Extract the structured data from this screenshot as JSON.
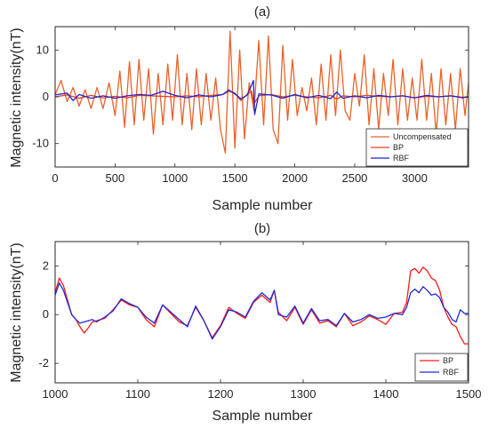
{
  "figure": {
    "charts": [
      {
        "type": "line",
        "title": "(a)",
        "xlabel": "Sample number",
        "ylabel": "Magnetic intensity(nT)",
        "xlim": [
          0,
          3450
        ],
        "ylim": [
          -15,
          15
        ],
        "xticks": [
          0,
          500,
          1000,
          1500,
          2000,
          2500,
          3000
        ],
        "yticks": [
          -10,
          0,
          10
        ],
        "grid": false,
        "legend_position": "bottom-right",
        "series": [
          {
            "name": "Uncompensated",
            "color": "#e8632a"
          },
          {
            "name": "BP",
            "color": "#e0401f"
          },
          {
            "name": "RBF",
            "color": "#1f24d4"
          }
        ]
      },
      {
        "type": "line",
        "title": "(b)",
        "xlabel": "Sample number",
        "ylabel": "Magnetic intensity(nT)",
        "xlim": [
          1000,
          1500
        ],
        "ylim": [
          -2.8,
          3
        ],
        "xticks": [
          1000,
          1100,
          1200,
          1300,
          1400,
          1500
        ],
        "yticks": [
          -2,
          0,
          2
        ],
        "grid": false,
        "legend_position": "bottom-right",
        "series": [
          {
            "name": "BP",
            "color": "#ff1a1a"
          },
          {
            "name": "RBF",
            "color": "#1f2bd6"
          }
        ]
      }
    ]
  },
  "chart_data": [
    {
      "type": "line",
      "title": "(a)",
      "xlabel": "Sample number",
      "ylabel": "Magnetic intensity(nT)",
      "xlim": [
        0,
        3450
      ],
      "ylim": [
        -15,
        15
      ],
      "series": [
        {
          "name": "Uncompensated",
          "x": [
            0,
            50,
            100,
            150,
            200,
            250,
            300,
            350,
            400,
            450,
            500,
            540,
            580,
            620,
            660,
            700,
            740,
            780,
            820,
            860,
            900,
            940,
            980,
            1020,
            1060,
            1100,
            1140,
            1180,
            1220,
            1260,
            1300,
            1340,
            1380,
            1420,
            1460,
            1500,
            1540,
            1580,
            1620,
            1660,
            1700,
            1740,
            1780,
            1820,
            1860,
            1900,
            1940,
            1980,
            2020,
            2060,
            2100,
            2140,
            2180,
            2220,
            2260,
            2300,
            2340,
            2380,
            2420,
            2460,
            2500,
            2540,
            2580,
            2620,
            2660,
            2700,
            2740,
            2780,
            2820,
            2860,
            2900,
            2940,
            2980,
            3020,
            3060,
            3100,
            3140,
            3180,
            3220,
            3260,
            3300,
            3340,
            3380,
            3420,
            3450
          ],
          "values": [
            0.5,
            3.5,
            -1,
            2,
            -2,
            1.5,
            -2.5,
            2,
            -2.5,
            3,
            -4,
            5.5,
            -6.5,
            7.5,
            -6,
            8,
            -5,
            6,
            -8,
            5,
            -6,
            7,
            -5,
            9,
            -6,
            5,
            -7,
            6,
            -6,
            5,
            -5,
            4,
            -7,
            -12,
            14,
            -11,
            10,
            -9,
            3,
            -3,
            12,
            -6,
            13,
            -7,
            -10,
            11,
            -5,
            8,
            -4,
            2,
            -3,
            4,
            -6,
            7,
            -5,
            9,
            -4,
            10,
            -3,
            -5,
            5,
            -2,
            9,
            -6,
            6,
            -7,
            5,
            -4,
            8,
            -6,
            6,
            -5,
            4,
            -5,
            8,
            -5,
            5,
            -8,
            6,
            -6,
            5,
            -7,
            6,
            -4,
            3
          ]
        },
        {
          "name": "BP",
          "x": [
            0,
            100,
            200,
            300,
            400,
            500,
            600,
            700,
            800,
            900,
            1000,
            1100,
            1200,
            1300,
            1400,
            1450,
            1500,
            1550,
            1600,
            1640,
            1660,
            1700,
            1800,
            1900,
            2000,
            2100,
            2200,
            2300,
            2350,
            2400,
            2500,
            2600,
            2700,
            2800,
            2900,
            3000,
            3100,
            3200,
            3300,
            3400,
            3450
          ],
          "values": [
            0,
            0.4,
            -0.3,
            0.3,
            -0.2,
            0.1,
            -0.2,
            0.3,
            0.2,
            0.1,
            0,
            0.2,
            0,
            0.3,
            0.5,
            1.2,
            0.8,
            -0.8,
            0.5,
            1.2,
            -1.5,
            0.2,
            0.5,
            0,
            0.3,
            0,
            -0.2,
            0.3,
            -0.5,
            0.2,
            0,
            0.3,
            0.1,
            0,
            0.2,
            -0.2,
            0.1,
            0,
            0.2,
            -0.1,
            0
          ]
        },
        {
          "name": "RBF",
          "x": [
            0,
            100,
            150,
            200,
            300,
            400,
            500,
            600,
            700,
            800,
            900,
            1000,
            1100,
            1200,
            1300,
            1400,
            1450,
            1500,
            1550,
            1600,
            1640,
            1655,
            1665,
            1700,
            1800,
            1900,
            2000,
            2100,
            2200,
            2300,
            2350,
            2400,
            2500,
            2600,
            2700,
            2800,
            2900,
            3000,
            3100,
            3200,
            3300,
            3400,
            3450
          ],
          "values": [
            0.4,
            0.8,
            -0.8,
            0.5,
            -0.3,
            0.2,
            -0.3,
            0.2,
            0.5,
            0.3,
            1.2,
            0.3,
            -0.2,
            0.4,
            0,
            0.5,
            1.5,
            0.6,
            -0.4,
            0.3,
            2.5,
            3.5,
            -3.8,
            0.6,
            0.4,
            -0.3,
            0.5,
            -0.2,
            0.3,
            -0.4,
            1,
            -0.3,
            0.2,
            -0.2,
            0.3,
            0,
            0.2,
            -0.2,
            0.3,
            0,
            0.2,
            -0.2,
            0
          ]
        }
      ]
    },
    {
      "type": "line",
      "title": "(b)",
      "xlabel": "Sample number",
      "ylabel": "Magnetic intensity(nT)",
      "xlim": [
        1000,
        1500
      ],
      "ylim": [
        -2.8,
        3
      ],
      "series": [
        {
          "name": "BP",
          "x": [
            1000,
            1005,
            1010,
            1015,
            1020,
            1025,
            1030,
            1035,
            1040,
            1045,
            1050,
            1060,
            1070,
            1080,
            1090,
            1100,
            1110,
            1120,
            1130,
            1140,
            1150,
            1160,
            1170,
            1180,
            1190,
            1200,
            1210,
            1220,
            1230,
            1240,
            1250,
            1260,
            1265,
            1270,
            1280,
            1290,
            1300,
            1310,
            1320,
            1330,
            1340,
            1350,
            1360,
            1370,
            1380,
            1390,
            1400,
            1410,
            1420,
            1425,
            1430,
            1435,
            1440,
            1445,
            1450,
            1455,
            1460,
            1465,
            1470,
            1475,
            1480,
            1485,
            1490,
            1495,
            1500
          ],
          "values": [
            0.9,
            1.5,
            1.2,
            0.6,
            0,
            -0.2,
            -0.5,
            -0.75,
            -0.55,
            -0.3,
            -0.25,
            -0.15,
            0.2,
            0.6,
            0.4,
            0.3,
            -0.2,
            -0.5,
            0.4,
            0.05,
            -0.3,
            -0.45,
            0.3,
            -0.25,
            -0.95,
            -0.45,
            0.3,
            0.05,
            -0.15,
            0.5,
            0.8,
            0.5,
            1,
            0.1,
            -0.25,
            0.3,
            -0.4,
            0.2,
            -0.35,
            -0.25,
            -0.5,
            0.05,
            -0.45,
            -0.3,
            -0.05,
            -0.2,
            -0.4,
            0.05,
            0.1,
            0.5,
            1.8,
            1.9,
            1.7,
            1.95,
            1.8,
            1.5,
            1.4,
            1.0,
            0.3,
            -0.1,
            -0.4,
            -0.5,
            -0.9,
            -1.2,
            -1.2
          ]
        },
        {
          "name": "RBF",
          "x": [
            1000,
            1005,
            1010,
            1015,
            1020,
            1025,
            1030,
            1035,
            1040,
            1045,
            1050,
            1060,
            1070,
            1080,
            1090,
            1100,
            1110,
            1120,
            1130,
            1140,
            1150,
            1160,
            1170,
            1180,
            1190,
            1200,
            1210,
            1220,
            1230,
            1240,
            1250,
            1260,
            1265,
            1270,
            1280,
            1290,
            1300,
            1310,
            1320,
            1330,
            1340,
            1350,
            1360,
            1370,
            1380,
            1390,
            1400,
            1410,
            1420,
            1425,
            1430,
            1435,
            1440,
            1445,
            1450,
            1455,
            1460,
            1465,
            1470,
            1475,
            1480,
            1485,
            1490,
            1495,
            1500
          ],
          "values": [
            0.8,
            1.3,
            1.0,
            0.5,
            0,
            -0.2,
            -0.35,
            -0.3,
            -0.25,
            -0.2,
            -0.3,
            -0.1,
            0.15,
            0.65,
            0.45,
            0.3,
            -0.1,
            -0.35,
            0.4,
            0.1,
            -0.2,
            -0.5,
            0.35,
            -0.25,
            -1.0,
            -0.5,
            0.2,
            0.1,
            -0.1,
            0.55,
            0.9,
            0.6,
            1.0,
            0.0,
            -0.1,
            0.35,
            -0.35,
            0.25,
            -0.25,
            -0.2,
            -0.45,
            0.05,
            -0.3,
            -0.2,
            0.0,
            -0.15,
            -0.1,
            0.05,
            0.0,
            0.3,
            0.9,
            1.05,
            0.9,
            1.15,
            1.0,
            0.8,
            0.85,
            0.7,
            0.3,
            0.1,
            -0.2,
            -0.3,
            0.2,
            0.05,
            0.05
          ]
        }
      ]
    }
  ]
}
